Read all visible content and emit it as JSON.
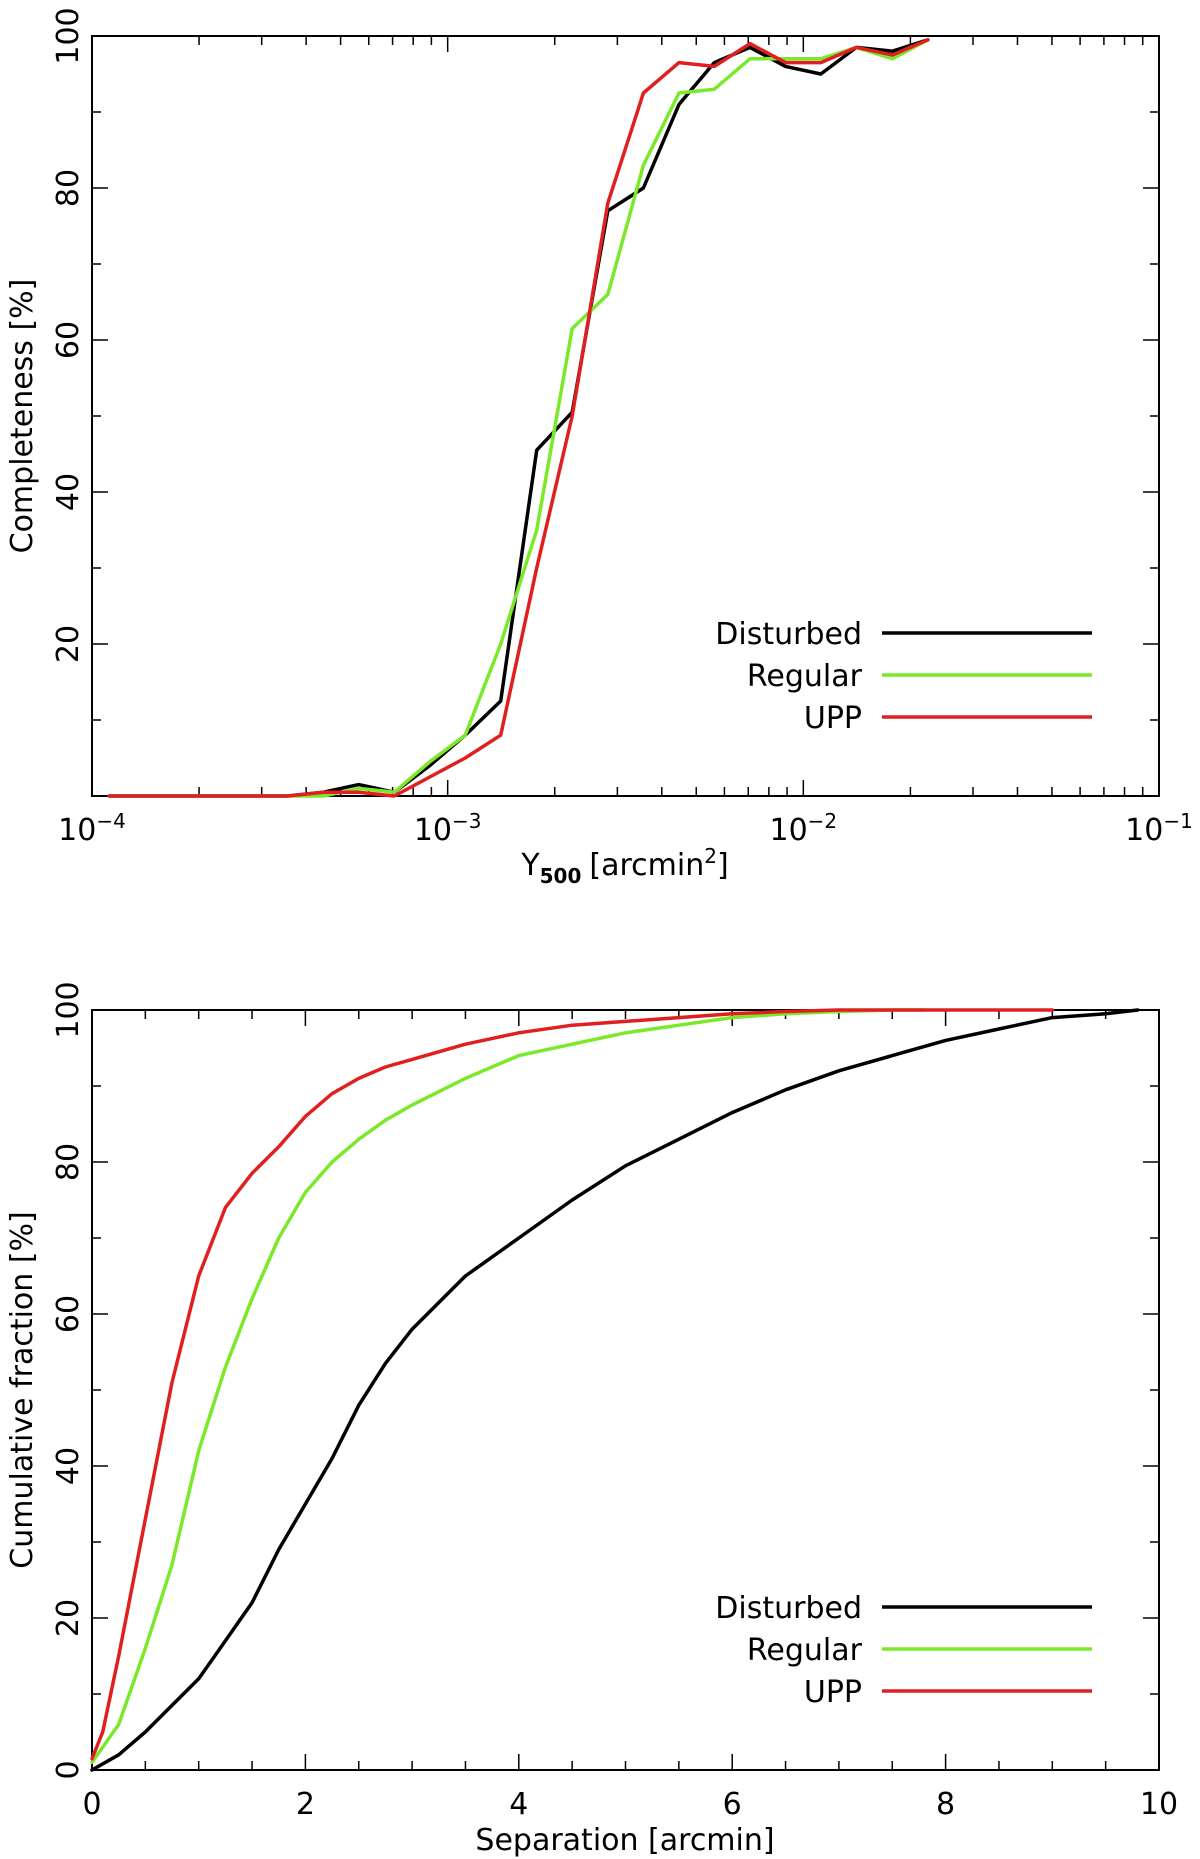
{
  "chart_data": [
    {
      "type": "line",
      "xscale": "log",
      "xlim": [
        0.0001,
        0.1
      ],
      "ylim": [
        0,
        100
      ],
      "xlabel": "Y500 [arcmin2]",
      "xlabel_main": "Y",
      "xlabel_sub": "500",
      "xlabel_unit": "[arcmin",
      "xlabel_unit_sup": "2",
      "xlabel_unit_end": "]",
      "ylabel": "Completeness [%]",
      "xticks": [
        {
          "value": 0.0001,
          "base": "10",
          "exp": "−4"
        },
        {
          "value": 0.001,
          "base": "10",
          "exp": "−3"
        },
        {
          "value": 0.01,
          "base": "10",
          "exp": "−2"
        },
        {
          "value": 0.1,
          "base": "10",
          "exp": "−1"
        }
      ],
      "yticks": [
        20,
        40,
        60,
        80,
        100
      ],
      "legend_position": "lower-right",
      "series": [
        {
          "name": "Disturbed",
          "color": "#000000",
          "x": [
            0.000112,
            0.000141,
            0.000178,
            0.000224,
            0.000282,
            0.000355,
            0.000447,
            0.000562,
            0.000708,
            0.000891,
            0.00112,
            0.00141,
            0.00178,
            0.00224,
            0.00282,
            0.00355,
            0.00447,
            0.00562,
            0.00708,
            0.00891,
            0.0112,
            0.0141,
            0.0178,
            0.0224
          ],
          "y": [
            0,
            0,
            0,
            0,
            0,
            0,
            0.5,
            1.5,
            0.5,
            4,
            8,
            12.5,
            45.5,
            50.5,
            77,
            80,
            91,
            96.5,
            98.5,
            96,
            95,
            98.5,
            98,
            99.5
          ]
        },
        {
          "name": "Regular",
          "color": "#7ce82a",
          "x": [
            0.000112,
            0.000141,
            0.000178,
            0.000224,
            0.000282,
            0.000355,
            0.000447,
            0.000562,
            0.000708,
            0.000891,
            0.00112,
            0.00141,
            0.00178,
            0.00224,
            0.00282,
            0.00355,
            0.00447,
            0.00562,
            0.00708,
            0.00891,
            0.0112,
            0.0141,
            0.0178,
            0.0224
          ],
          "y": [
            0,
            0,
            0,
            0,
            0,
            0,
            0,
            1,
            0.5,
            4.5,
            8,
            20,
            35,
            61.5,
            66,
            83,
            92.5,
            93,
            97,
            97,
            97,
            98.5,
            97,
            99.5
          ]
        },
        {
          "name": "UPP",
          "color": "#e02020",
          "x": [
            0.000112,
            0.000141,
            0.000178,
            0.000224,
            0.000282,
            0.000355,
            0.000447,
            0.000562,
            0.000708,
            0.000891,
            0.00112,
            0.00141,
            0.00178,
            0.00224,
            0.00282,
            0.00355,
            0.00447,
            0.00562,
            0.00708,
            0.00891,
            0.0112,
            0.0141,
            0.0178,
            0.0224
          ],
          "y": [
            0,
            0,
            0,
            0,
            0,
            0,
            0.5,
            0.5,
            0,
            2.5,
            5,
            8,
            30,
            50,
            78,
            92.5,
            96.5,
            96,
            99,
            96.5,
            96.5,
            98.5,
            97.5,
            99.5
          ]
        }
      ]
    },
    {
      "type": "line",
      "xscale": "linear",
      "xlim": [
        0,
        10
      ],
      "ylim": [
        0,
        100
      ],
      "xlabel": "Separation [arcmin]",
      "ylabel": "Cumulative fraction [%]",
      "xticks": [
        {
          "value": 0,
          "label": "0"
        },
        {
          "value": 2,
          "label": "2"
        },
        {
          "value": 4,
          "label": "4"
        },
        {
          "value": 6,
          "label": "6"
        },
        {
          "value": 8,
          "label": "8"
        },
        {
          "value": 10,
          "label": "10"
        }
      ],
      "yticks": [
        0,
        20,
        40,
        60,
        80,
        100
      ],
      "legend_position": "lower-right",
      "series": [
        {
          "name": "Disturbed",
          "color": "#000000",
          "x": [
            0,
            0.25,
            0.5,
            0.75,
            1.0,
            1.25,
            1.5,
            1.75,
            2.0,
            2.25,
            2.5,
            2.75,
            3.0,
            3.5,
            4.0,
            4.5,
            5.0,
            5.5,
            6.0,
            6.5,
            7.0,
            7.5,
            8.0,
            8.5,
            9.0,
            9.5,
            9.8
          ],
          "y": [
            0,
            2,
            5,
            8.5,
            12,
            17,
            22,
            29,
            35,
            41,
            48,
            53.5,
            58,
            65,
            70,
            75,
            79.5,
            83,
            86.5,
            89.5,
            92,
            94,
            96,
            97.5,
            99,
            99.5,
            100
          ]
        },
        {
          "name": "Regular",
          "color": "#7ce82a",
          "x": [
            0,
            0.25,
            0.5,
            0.75,
            1.0,
            1.25,
            1.5,
            1.75,
            2.0,
            2.25,
            2.5,
            2.75,
            3.0,
            3.5,
            4.0,
            4.5,
            5.0,
            5.5,
            6.0,
            6.5,
            7.0,
            7.5,
            7.8
          ],
          "y": [
            1,
            6,
            16,
            27,
            42,
            53,
            62,
            70,
            76,
            80,
            83,
            85.5,
            87.5,
            91,
            94,
            95.5,
            97,
            98,
            99,
            99.5,
            99.8,
            100,
            100
          ]
        },
        {
          "name": "UPP",
          "color": "#e02020",
          "x": [
            0,
            0.1,
            0.25,
            0.5,
            0.75,
            1.0,
            1.25,
            1.5,
            1.75,
            2.0,
            2.25,
            2.5,
            2.75,
            3.0,
            3.5,
            4.0,
            4.5,
            5.0,
            5.5,
            6.0,
            6.5,
            7.0,
            7.5,
            8.0,
            8.5,
            9.0
          ],
          "y": [
            1.5,
            5,
            15,
            33,
            51,
            65,
            74,
            78.5,
            82,
            86,
            89,
            91,
            92.5,
            93.5,
            95.5,
            97,
            98,
            98.5,
            99,
            99.5,
            99.8,
            100,
            100,
            100,
            100,
            100
          ]
        }
      ]
    }
  ]
}
